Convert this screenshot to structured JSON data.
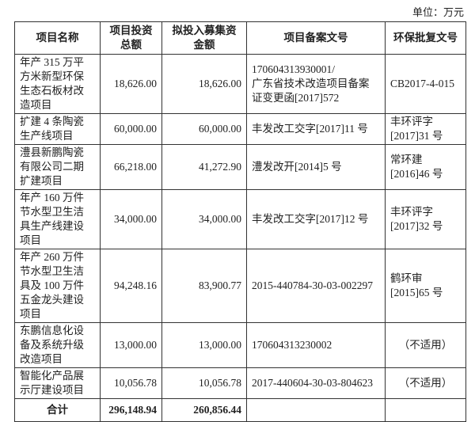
{
  "unit": "单位：万元",
  "headers": [
    "项目名称",
    "项目投资\n总额",
    "拟投入募集资\n金额",
    "项目备案文号",
    "环保批复文号"
  ],
  "rows": [
    {
      "name": "年产 315 万平\n方米新型环保\n生态石板材改\n造项目",
      "total": "18,626.00",
      "raised": "18,626.00",
      "filing": "170604313930001/\n广东省技术改造项目备案\n证变更函[2017]572",
      "env": "CB2017-4-015"
    },
    {
      "name": "扩建 4 条陶瓷\n生产线项目",
      "total": "60,000.00",
      "raised": "60,000.00",
      "filing": "丰发改工交字[2017]11 号",
      "env": "丰环评字\n[2017]31 号"
    },
    {
      "name": "澧县新鹏陶瓷\n有限公司二期\n扩建项目",
      "total": "66,218.00",
      "raised": "41,272.90",
      "filing": "澧发改开[2014]5 号",
      "env": "常环建\n[2016]46 号"
    },
    {
      "name": "年产 160 万件\n节水型卫生洁\n具生产线建设\n项目",
      "total": "34,000.00",
      "raised": "34,000.00",
      "filing": "丰发改工交字[2017]12 号",
      "env": "丰环评字\n[2017]32 号"
    },
    {
      "name": "年产 260 万件\n节水型卫生洁\n具及 100 万件\n五金龙头建设\n项目",
      "total": "94,248.16",
      "raised": "83,900.77",
      "filing": "2015-440784-30-03-002297",
      "env": "鹤环审\n[2015]65 号"
    },
    {
      "name": "东鹏信息化设\n备及系统升级\n改造项目",
      "total": "13,000.00",
      "raised": "13,000.00",
      "filing": "170604313230002",
      "env": "（不适用）"
    },
    {
      "name": "智能化产品展\n示厅建设项目",
      "total": "10,056.78",
      "raised": "10,056.78",
      "filing": "2017-440604-30-03-804623",
      "env": "（不适用）"
    }
  ],
  "total_row": {
    "label": "合计",
    "total": "296,148.94",
    "raised": "260,856.44",
    "filing": "",
    "env": ""
  }
}
